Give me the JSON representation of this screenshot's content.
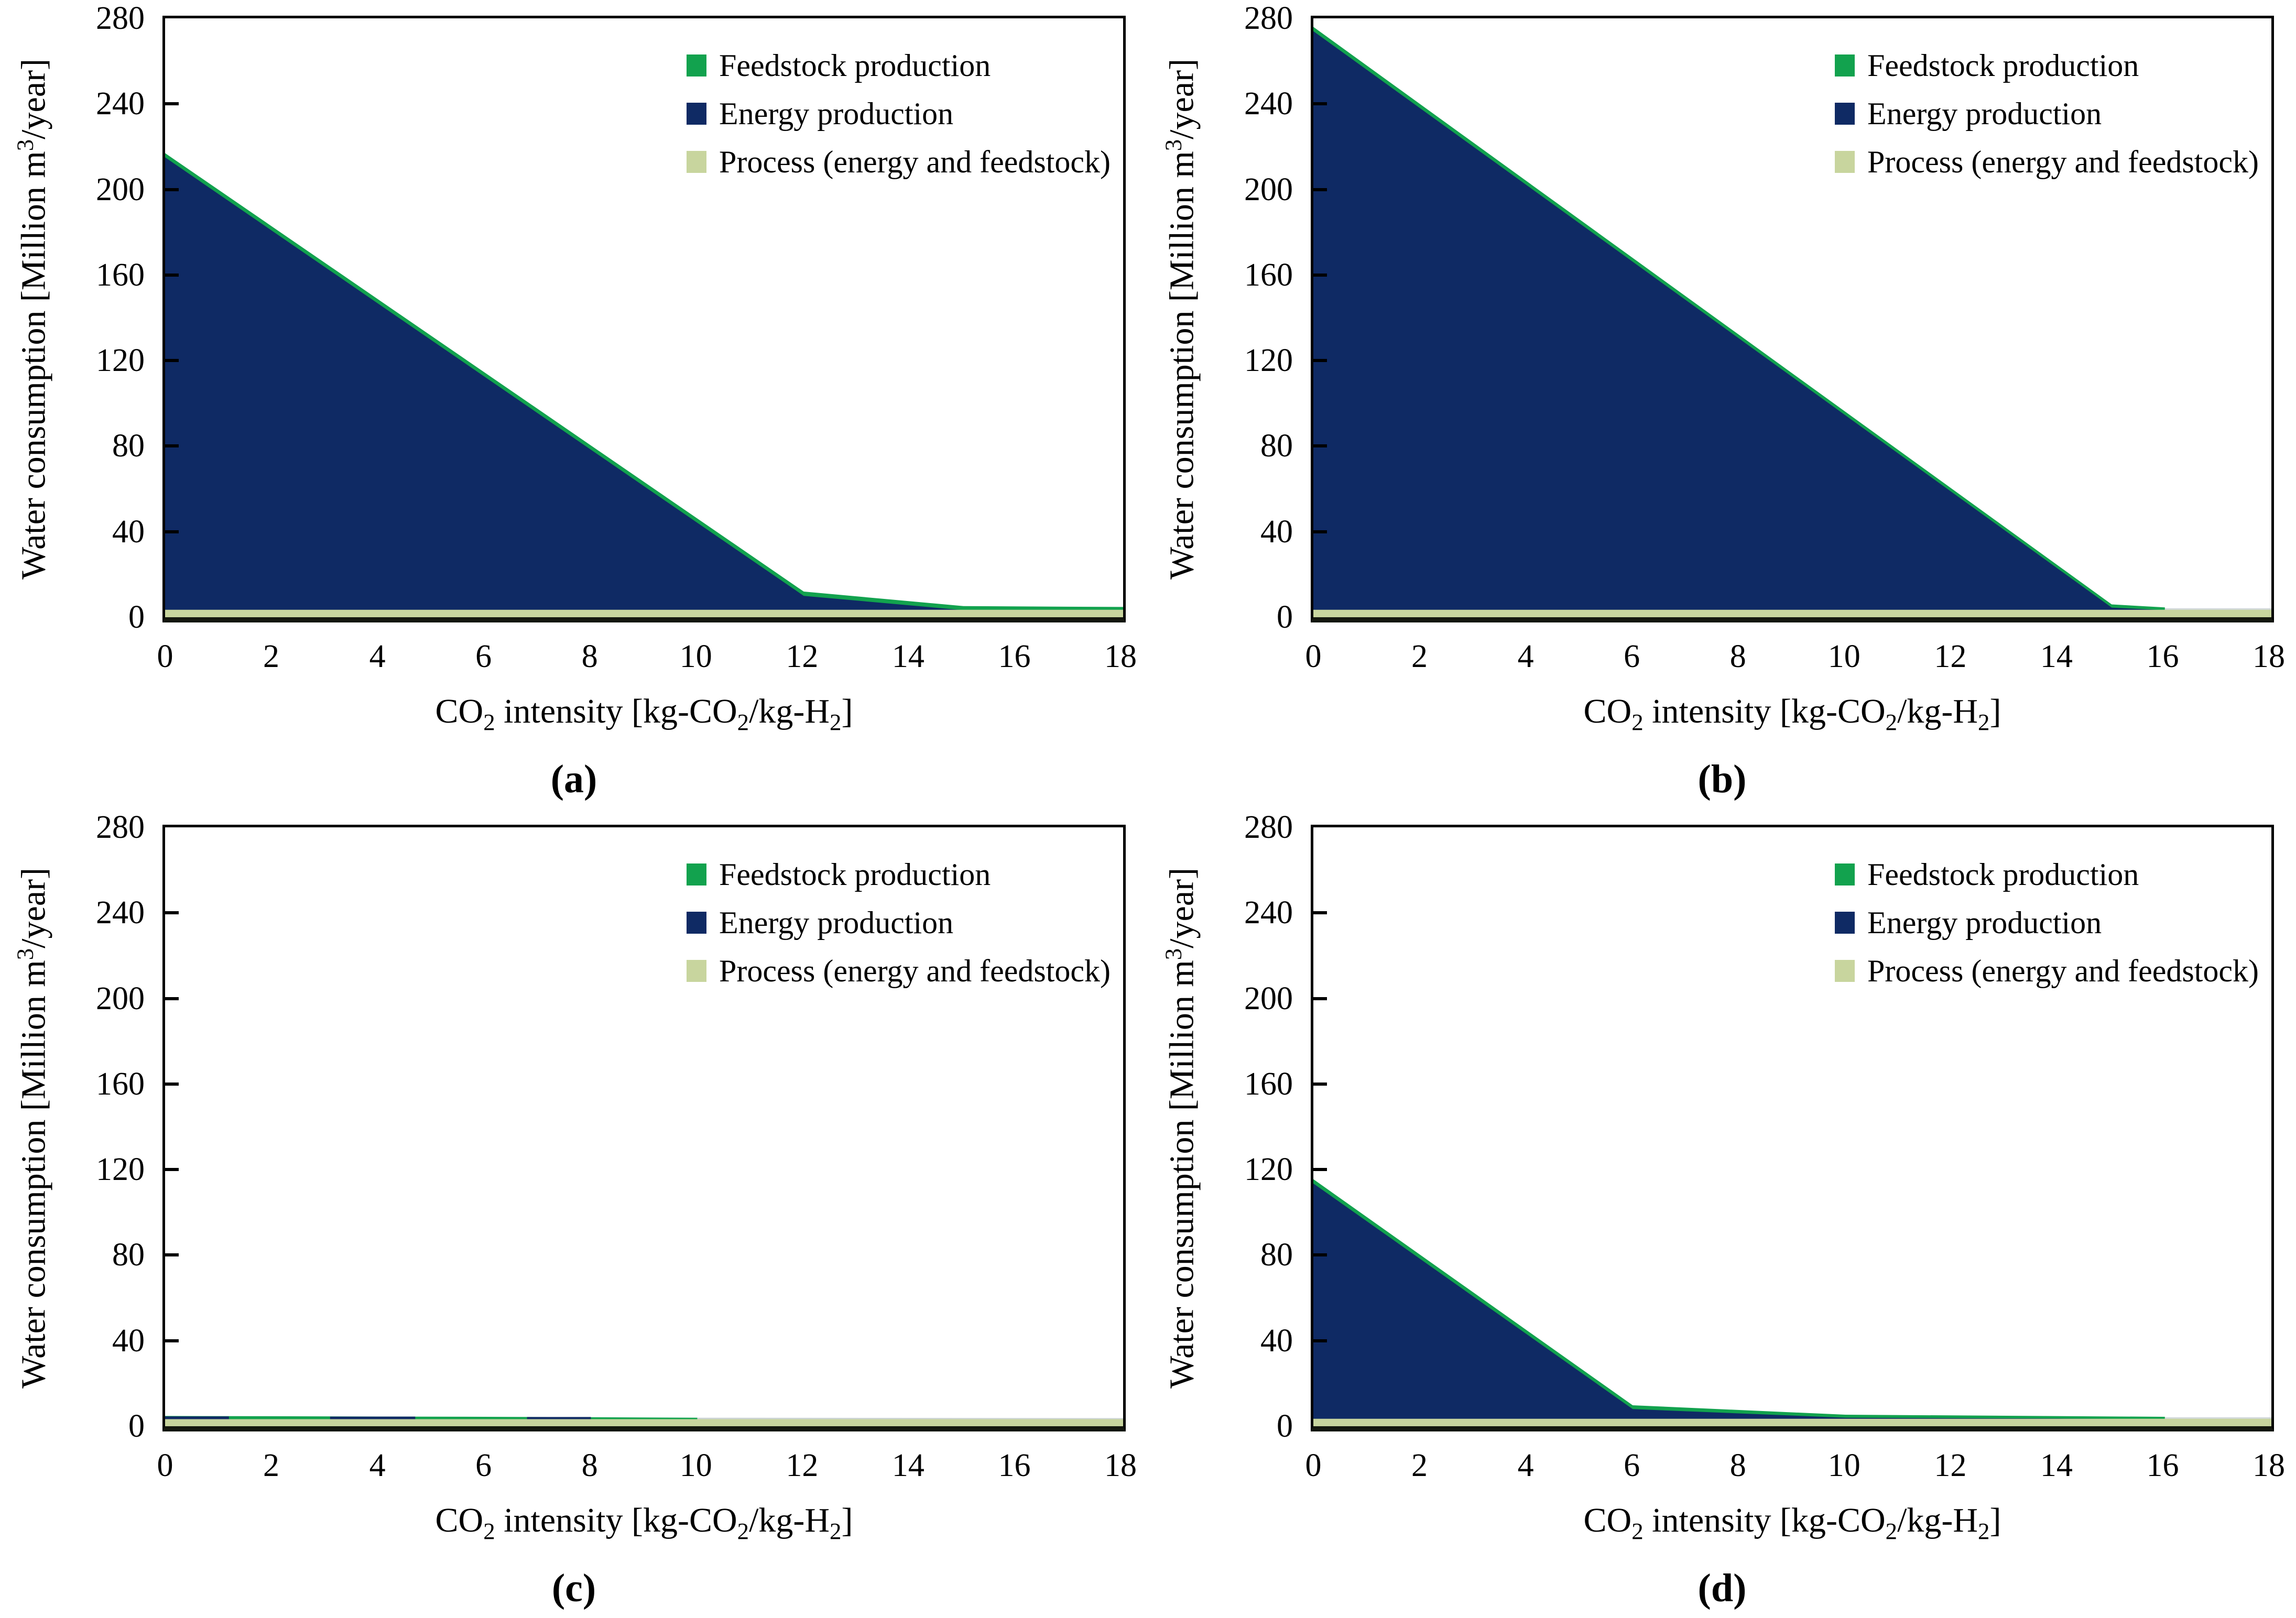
{
  "figure": {
    "y_axis_title": {
      "text": "Water consumption [Million m3/year]",
      "segments": [
        {
          "t": "Water consumption [Million m"
        },
        {
          "t": "3",
          "script": "sup"
        },
        {
          "t": "/year]"
        }
      ]
    },
    "x_axis_title": {
      "text": "CO2 intensity [kg-CO2/kg-H2]",
      "segments": [
        {
          "t": "CO"
        },
        {
          "t": "2",
          "script": "sub"
        },
        {
          "t": " intensity [kg-CO"
        },
        {
          "t": "2",
          "script": "sub"
        },
        {
          "t": "/kg-H"
        },
        {
          "t": "2",
          "script": "sub"
        },
        {
          "t": "]"
        }
      ]
    },
    "legend": {
      "position": "top-right-inside",
      "items": [
        {
          "label": "Feedstock production",
          "color": "#12a24e"
        },
        {
          "label": "Energy production",
          "color": "#0f2a64"
        },
        {
          "label": "Process (energy and feedstock)",
          "color": "#c8d59e"
        }
      ]
    },
    "axes": {
      "x_ticks": [
        0,
        2,
        4,
        6,
        8,
        10,
        12,
        14,
        16,
        18
      ],
      "y_ticks": [
        0,
        40,
        80,
        120,
        160,
        200,
        240,
        280
      ],
      "x_max": 18,
      "y_max": 280,
      "grid": false
    }
  },
  "chart_data": [
    {
      "type": "area",
      "sublabel": "(a)",
      "xlabel": "CO2 intensity [kg-CO2/kg-H2]",
      "ylabel": "Water consumption [Million m3/year]",
      "xlim": [
        0,
        18
      ],
      "ylim": [
        0,
        280
      ],
      "areas": [
        {
          "name": "feedstock",
          "color": "#12a24e",
          "points": [
            [
              0,
              217
            ],
            [
              12,
              12
            ],
            [
              15,
              5.2
            ],
            [
              18,
              4.8
            ]
          ]
        },
        {
          "name": "energy",
          "color": "#0f2a64",
          "points": [
            [
              0,
              215
            ],
            [
              12,
              10
            ],
            [
              15,
              3.3
            ],
            [
              18,
              3.3
            ]
          ]
        },
        {
          "name": "process",
          "color": "#c8d59e",
          "points": [
            [
              0,
              3.5
            ],
            [
              18,
              3.5
            ]
          ]
        }
      ]
    },
    {
      "type": "area",
      "sublabel": "(b)",
      "xlabel": "CO2 intensity [kg-CO2/kg-H2]",
      "ylabel": "Water consumption [Million m3/year]",
      "xlim": [
        0,
        18
      ],
      "ylim": [
        0,
        280
      ],
      "areas": [
        {
          "name": "feedstock",
          "color": "#12a24e",
          "points": [
            [
              0,
              276
            ],
            [
              15,
              6
            ],
            [
              16,
              4.6
            ]
          ]
        },
        {
          "name": "energy",
          "color": "#0f2a64",
          "points": [
            [
              0,
              274
            ],
            [
              15,
              4.5
            ],
            [
              16,
              3.3
            ],
            [
              18,
              3.3
            ]
          ]
        },
        {
          "name": "trace",
          "color": "#d2d9db",
          "points": [
            [
              16,
              4.2
            ],
            [
              18,
              4.2
            ]
          ]
        },
        {
          "name": "process",
          "color": "#c8d59e",
          "points": [
            [
              0,
              3.5
            ],
            [
              18,
              3.5
            ]
          ]
        }
      ]
    },
    {
      "type": "area",
      "sublabel": "(c)",
      "xlabel": "CO2 intensity [kg-CO2/kg-H2]",
      "ylabel": "Water consumption [Million m3/year]",
      "xlim": [
        0,
        18
      ],
      "ylim": [
        0,
        280
      ],
      "areas": [
        {
          "name": "feedstock",
          "color": "#12a24e",
          "points": [
            [
              0,
              4.8
            ],
            [
              6,
              4.4
            ],
            [
              10,
              4.0
            ]
          ]
        },
        {
          "name": "trace",
          "color": "#ccd4d6",
          "points": [
            [
              10,
              4.0
            ],
            [
              18,
              3.8
            ]
          ]
        },
        {
          "name": "energy",
          "color": "#0f2a64",
          "points": [
            [
              0,
              4.6
            ],
            [
              1.2,
              4.6
            ]
          ]
        },
        {
          "name": "energy",
          "color": "#0f2a64",
          "points": [
            [
              3.1,
              4.5
            ],
            [
              4.7,
              4.5
            ]
          ]
        },
        {
          "name": "energy",
          "color": "#0f2a64",
          "points": [
            [
              6.8,
              4.3
            ],
            [
              8,
              4.3
            ]
          ]
        },
        {
          "name": "process",
          "color": "#c8d59e",
          "points": [
            [
              0,
              3.3
            ],
            [
              18,
              3.3
            ]
          ]
        }
      ]
    },
    {
      "type": "area",
      "sublabel": "(d)",
      "xlabel": "CO2 intensity [kg-CO2/kg-H2]",
      "ylabel": "Water consumption [Million m3/year]",
      "xlim": [
        0,
        18
      ],
      "ylim": [
        0,
        280
      ],
      "areas": [
        {
          "name": "feedstock",
          "color": "#12a24e",
          "points": [
            [
              0,
              115.5
            ],
            [
              6,
              9.8
            ],
            [
              10,
              5.4
            ],
            [
              16,
              4.4
            ]
          ]
        },
        {
          "name": "energy",
          "color": "#0f2a64",
          "points": [
            [
              0,
              113.5
            ],
            [
              6,
              8
            ],
            [
              10,
              4.0
            ],
            [
              14,
              3.6
            ],
            [
              16,
              3.3
            ],
            [
              18,
              3.3
            ]
          ]
        },
        {
          "name": "trace",
          "color": "#d2d9db",
          "points": [
            [
              16,
              4.2
            ],
            [
              18,
              4.2
            ]
          ]
        },
        {
          "name": "process",
          "color": "#c8d59e",
          "points": [
            [
              0,
              3.5
            ],
            [
              18,
              3.5
            ]
          ]
        }
      ]
    }
  ]
}
